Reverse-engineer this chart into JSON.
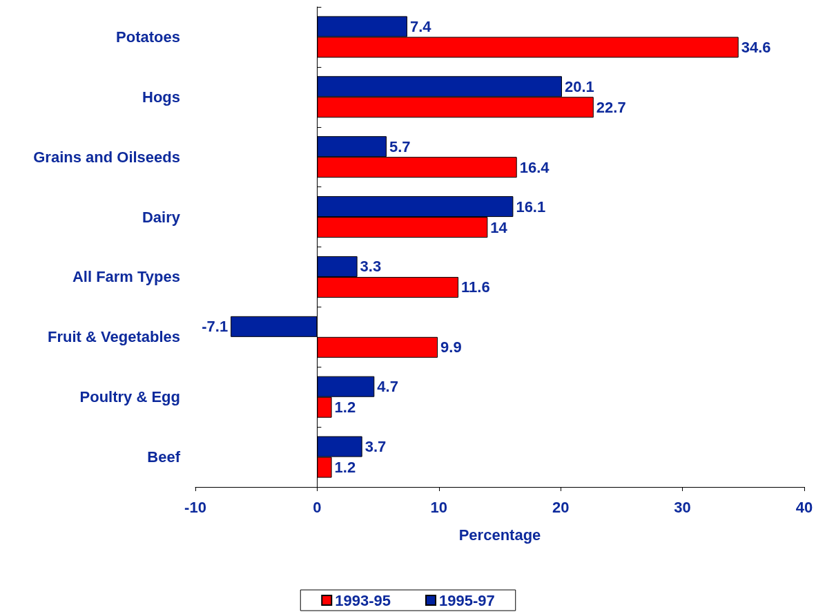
{
  "chart_data": {
    "type": "bar",
    "orientation": "horizontal",
    "xlabel": "Percentage",
    "categories": [
      "Potatoes",
      "Hogs",
      "Grains and Oilseeds",
      "Dairy",
      "All Farm Types",
      "Fruit & Vegetables",
      "Poultry & Egg",
      "Beef"
    ],
    "series": [
      {
        "name": "1993-95",
        "color": "#ff0000",
        "values": [
          34.6,
          22.7,
          16.4,
          14,
          11.6,
          9.9,
          1.2,
          1.2
        ]
      },
      {
        "name": "1995-97",
        "color": "#0022a0",
        "values": [
          7.4,
          20.1,
          5.7,
          16.1,
          3.3,
          -7.1,
          4.7,
          3.7
        ]
      }
    ],
    "xlim": [
      -10,
      40
    ],
    "xticks": [
      -10,
      0,
      10,
      20,
      30,
      40
    ],
    "data_labels": true,
    "legend": "bottom"
  }
}
